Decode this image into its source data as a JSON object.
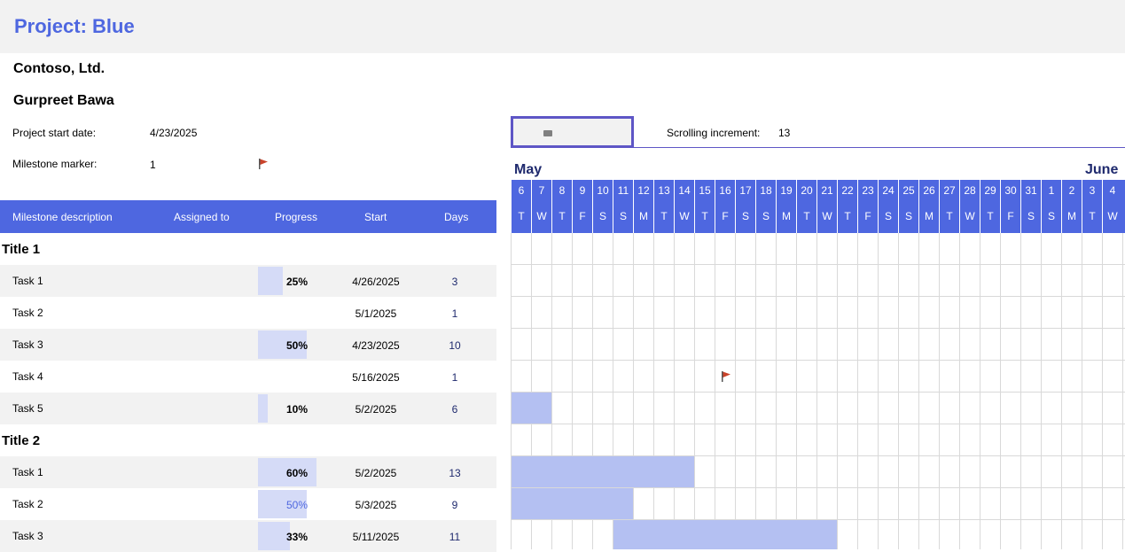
{
  "project_title": "Project: Blue",
  "company": "Contoso, Ltd.",
  "manager": "Gurpreet Bawa",
  "labels": {
    "start_date": "Project start date:",
    "milestone_marker": "Milestone marker:",
    "scrolling_increment": "Scrolling increment:"
  },
  "values": {
    "start_date": "4/23/2025",
    "milestone_marker": "1",
    "scrolling_increment": "13"
  },
  "months": [
    "May",
    "June"
  ],
  "columns": {
    "description": "Milestone description",
    "assigned": "Assigned to",
    "progress": "Progress",
    "start": "Start",
    "days": "Days"
  },
  "days": [
    {
      "n": "6",
      "d": "T"
    },
    {
      "n": "7",
      "d": "W"
    },
    {
      "n": "8",
      "d": "T"
    },
    {
      "n": "9",
      "d": "F"
    },
    {
      "n": "10",
      "d": "S"
    },
    {
      "n": "11",
      "d": "S"
    },
    {
      "n": "12",
      "d": "M"
    },
    {
      "n": "13",
      "d": "T"
    },
    {
      "n": "14",
      "d": "W"
    },
    {
      "n": "15",
      "d": "T"
    },
    {
      "n": "16",
      "d": "F"
    },
    {
      "n": "17",
      "d": "S"
    },
    {
      "n": "18",
      "d": "S"
    },
    {
      "n": "19",
      "d": "M"
    },
    {
      "n": "20",
      "d": "T"
    },
    {
      "n": "21",
      "d": "W"
    },
    {
      "n": "22",
      "d": "T"
    },
    {
      "n": "23",
      "d": "F"
    },
    {
      "n": "24",
      "d": "S"
    },
    {
      "n": "25",
      "d": "S"
    },
    {
      "n": "26",
      "d": "M"
    },
    {
      "n": "27",
      "d": "T"
    },
    {
      "n": "28",
      "d": "W"
    },
    {
      "n": "29",
      "d": "T"
    },
    {
      "n": "30",
      "d": "F"
    },
    {
      "n": "31",
      "d": "S"
    },
    {
      "n": "1",
      "d": "S"
    },
    {
      "n": "2",
      "d": "M"
    },
    {
      "n": "3",
      "d": "T"
    },
    {
      "n": "4",
      "d": "W"
    }
  ],
  "sections": [
    {
      "title": "Title 1",
      "tasks": [
        {
          "name": "Task 1",
          "progress": 25,
          "progress_label": "25%",
          "start": "4/26/2025",
          "days": "3"
        },
        {
          "name": "Task 2",
          "progress": 0,
          "progress_label": "",
          "start": "5/1/2025",
          "days": "1"
        },
        {
          "name": "Task 3",
          "progress": 50,
          "progress_label": "50%",
          "start": "4/23/2025",
          "days": "10"
        },
        {
          "name": "Task 4",
          "progress": 0,
          "progress_label": "",
          "start": "5/16/2025",
          "days": "1",
          "milestone": true
        },
        {
          "name": "Task 5",
          "progress": 10,
          "progress_label": "10%",
          "start": "5/2/2025",
          "days": "6"
        }
      ]
    },
    {
      "title": "Title 2",
      "tasks": [
        {
          "name": "Task 1",
          "progress": 60,
          "progress_label": "60%",
          "start": "5/2/2025",
          "days": "13"
        },
        {
          "name": "Task 2",
          "progress": 50,
          "progress_label": "50%",
          "start": "5/3/2025",
          "days": "9",
          "selected": true
        },
        {
          "name": "Task 3",
          "progress": 33,
          "progress_label": "33%",
          "start": "5/11/2025",
          "days": "11"
        }
      ]
    }
  ],
  "colors": {
    "accent": "#4e67e0",
    "bar": "#b4c0f2",
    "progress": "#d5dbf7",
    "flag": "#c9432a"
  }
}
